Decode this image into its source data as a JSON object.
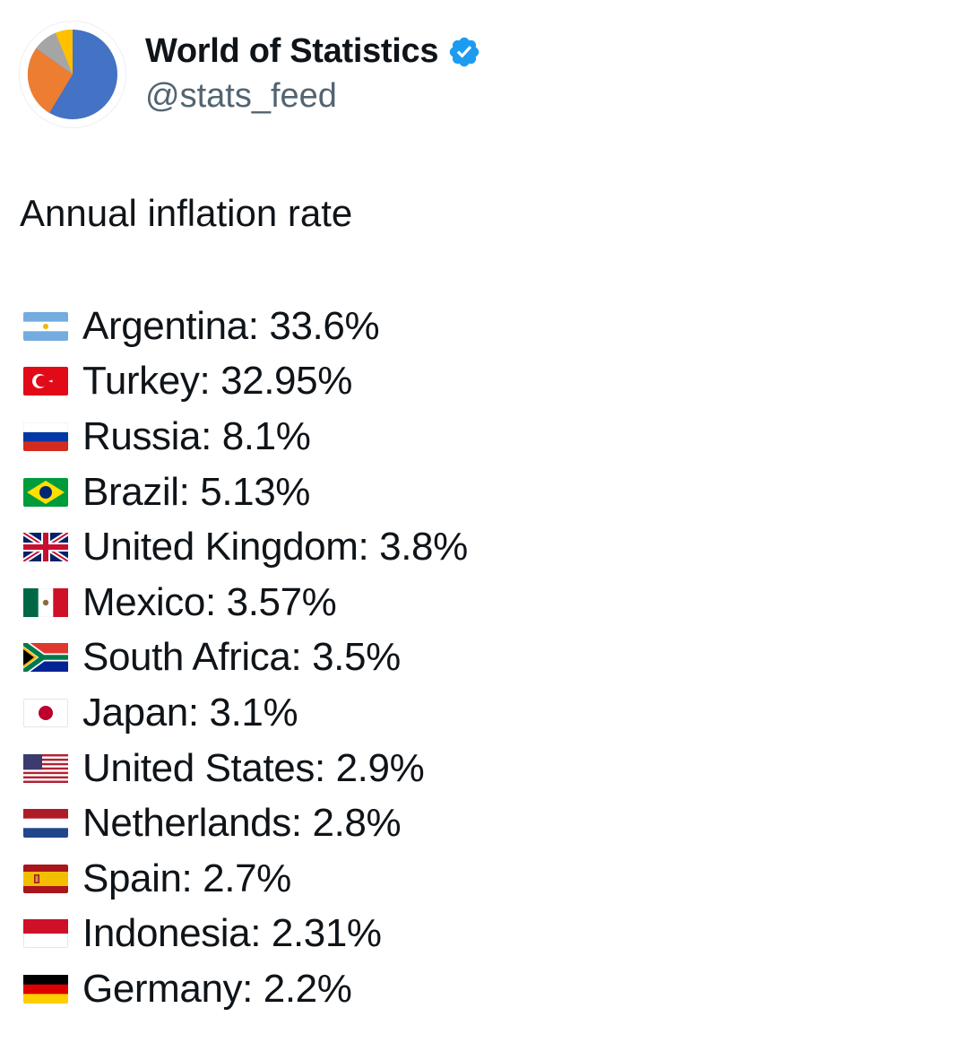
{
  "account": {
    "display_name": "World of Statistics",
    "handle": "@stats_feed",
    "verified": true,
    "avatar_icon": "pie-chart-icon",
    "verified_icon": "verified-badge-icon",
    "verified_color": "#1d9bf0"
  },
  "tweet": {
    "title": "Annual inflation rate",
    "items": [
      {
        "flag": "argentina-flag-icon",
        "text": "Argentina: 33.6%"
      },
      {
        "flag": "turkey-flag-icon",
        "text": "Turkey: 32.95%"
      },
      {
        "flag": "russia-flag-icon",
        "text": "Russia: 8.1%"
      },
      {
        "flag": "brazil-flag-icon",
        "text": "Brazil: 5.13%"
      },
      {
        "flag": "united-kingdom-flag-icon",
        "text": "United Kingdom: 3.8%"
      },
      {
        "flag": "mexico-flag-icon",
        "text": "Mexico: 3.57%"
      },
      {
        "flag": "south-africa-flag-icon",
        "text": "South Africa: 3.5%"
      },
      {
        "flag": "japan-flag-icon",
        "text": "Japan: 3.1%"
      },
      {
        "flag": "united-states-flag-icon",
        "text": "United States: 2.9%"
      },
      {
        "flag": "netherlands-flag-icon",
        "text": "Netherlands: 2.8%"
      },
      {
        "flag": "spain-flag-icon",
        "text": "Spain: 2.7%"
      },
      {
        "flag": "indonesia-flag-icon",
        "text": "Indonesia: 2.31%"
      },
      {
        "flag": "germany-flag-icon",
        "text": "Germany: 2.2%"
      }
    ]
  }
}
